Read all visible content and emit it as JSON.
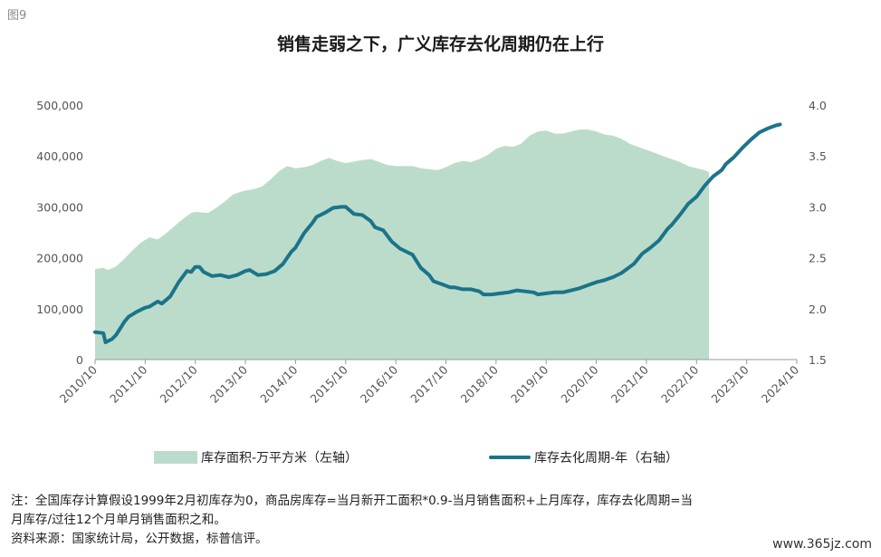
{
  "figure_label": "图9",
  "chart_data": {
    "type": "area+line",
    "title": "销售走弱之下，广义库存去化周期仍在上行",
    "categories": [
      "2010/10",
      "2011/10",
      "2012/10",
      "2013/10",
      "2014/10",
      "2015/10",
      "2016/10",
      "2017/10",
      "2018/10",
      "2019/10",
      "2020/10",
      "2021/10",
      "2022/10",
      "2023/10",
      "2024/10"
    ],
    "left_axis": {
      "ylim": [
        0,
        500000
      ],
      "ticks": [
        "0",
        "100,000",
        "200,000",
        "300,000",
        "400,000",
        "500,000"
      ]
    },
    "right_axis": {
      "ylim": [
        1.5,
        4.0
      ],
      "ticks": [
        "1.5",
        "2.0",
        "2.5",
        "3.0",
        "3.5",
        "4.0"
      ]
    },
    "grid": false,
    "legend_position": "bottom",
    "series": [
      {
        "name": "库存面积-万平方米（左轴）",
        "type": "area",
        "axis": "left",
        "color": "#bcdccb",
        "values": [
          [
            0,
            178000
          ],
          [
            2,
            180000
          ],
          [
            3,
            176000
          ],
          [
            5,
            183000
          ],
          [
            7,
            198000
          ],
          [
            9,
            215000
          ],
          [
            11,
            230000
          ],
          [
            13,
            240000
          ],
          [
            15,
            236000
          ],
          [
            17,
            248000
          ],
          [
            19,
            262000
          ],
          [
            21,
            276000
          ],
          [
            23,
            288000
          ],
          [
            24,
            290000
          ],
          [
            27,
            288000
          ],
          [
            29,
            298000
          ],
          [
            31,
            310000
          ],
          [
            33,
            324000
          ],
          [
            35,
            330000
          ],
          [
            36,
            332000
          ],
          [
            38,
            335000
          ],
          [
            40,
            340000
          ],
          [
            42,
            354000
          ],
          [
            44,
            370000
          ],
          [
            46,
            380000
          ],
          [
            48,
            376000
          ],
          [
            50,
            378000
          ],
          [
            52,
            382000
          ],
          [
            54,
            390000
          ],
          [
            56,
            396000
          ],
          [
            58,
            390000
          ],
          [
            60,
            386000
          ],
          [
            62,
            389000
          ],
          [
            64,
            392000
          ],
          [
            66,
            394000
          ],
          [
            68,
            388000
          ],
          [
            70,
            382000
          ],
          [
            72,
            380000
          ],
          [
            74,
            380000
          ],
          [
            76,
            380000
          ],
          [
            78,
            376000
          ],
          [
            80,
            374000
          ],
          [
            82,
            372000
          ],
          [
            84,
            378000
          ],
          [
            86,
            386000
          ],
          [
            88,
            390000
          ],
          [
            90,
            388000
          ],
          [
            92,
            394000
          ],
          [
            94,
            402000
          ],
          [
            96,
            414000
          ],
          [
            98,
            420000
          ],
          [
            100,
            418000
          ],
          [
            102,
            424000
          ],
          [
            104,
            440000
          ],
          [
            106,
            448000
          ],
          [
            108,
            450000
          ],
          [
            110,
            444000
          ],
          [
            112,
            444000
          ],
          [
            114,
            448000
          ],
          [
            116,
            452000
          ],
          [
            118,
            452000
          ],
          [
            120,
            448000
          ],
          [
            122,
            442000
          ],
          [
            124,
            440000
          ],
          [
            126,
            434000
          ],
          [
            128,
            424000
          ],
          [
            130,
            418000
          ],
          [
            132,
            412000
          ],
          [
            134,
            406000
          ],
          [
            136,
            400000
          ],
          [
            138,
            394000
          ],
          [
            140,
            388000
          ],
          [
            142,
            380000
          ],
          [
            144,
            376000
          ],
          [
            146,
            372000
          ],
          [
            147,
            368000
          ]
        ]
      },
      {
        "name": "库存去化周期-年（右轴）",
        "type": "line",
        "axis": "right",
        "color": "#1b7489",
        "values": [
          [
            0,
            1.77
          ],
          [
            2,
            1.76
          ],
          [
            2.5,
            1.67
          ],
          [
            4,
            1.7
          ],
          [
            5,
            1.74
          ],
          [
            7,
            1.87
          ],
          [
            8,
            1.92
          ],
          [
            10,
            1.97
          ],
          [
            12,
            2.01
          ],
          [
            13,
            2.02
          ],
          [
            15,
            2.07
          ],
          [
            16,
            2.05
          ],
          [
            18,
            2.12
          ],
          [
            20,
            2.26
          ],
          [
            22,
            2.37
          ],
          [
            23,
            2.36
          ],
          [
            24,
            2.41
          ],
          [
            25,
            2.41
          ],
          [
            26,
            2.36
          ],
          [
            28,
            2.32
          ],
          [
            30,
            2.33
          ],
          [
            32,
            2.31
          ],
          [
            34,
            2.33
          ],
          [
            36,
            2.37
          ],
          [
            37,
            2.38
          ],
          [
            39,
            2.33
          ],
          [
            41,
            2.34
          ],
          [
            43,
            2.37
          ],
          [
            45,
            2.44
          ],
          [
            47,
            2.56
          ],
          [
            48,
            2.6
          ],
          [
            50,
            2.74
          ],
          [
            52,
            2.84
          ],
          [
            53,
            2.9
          ],
          [
            55,
            2.94
          ],
          [
            57,
            2.99
          ],
          [
            59,
            3.0
          ],
          [
            60,
            3.0
          ],
          [
            62,
            2.93
          ],
          [
            64,
            2.92
          ],
          [
            66,
            2.86
          ],
          [
            67,
            2.8
          ],
          [
            69,
            2.77
          ],
          [
            71,
            2.66
          ],
          [
            73,
            2.59
          ],
          [
            75,
            2.55
          ],
          [
            76,
            2.53
          ],
          [
            78,
            2.4
          ],
          [
            80,
            2.33
          ],
          [
            81,
            2.27
          ],
          [
            83,
            2.24
          ],
          [
            85,
            2.21
          ],
          [
            86,
            2.21
          ],
          [
            88,
            2.19
          ],
          [
            90,
            2.19
          ],
          [
            92,
            2.17
          ],
          [
            93,
            2.14
          ],
          [
            95,
            2.14
          ],
          [
            97,
            2.15
          ],
          [
            99,
            2.16
          ],
          [
            101,
            2.18
          ],
          [
            103,
            2.17
          ],
          [
            105,
            2.16
          ],
          [
            106,
            2.14
          ],
          [
            108,
            2.15
          ],
          [
            110,
            2.16
          ],
          [
            112,
            2.16
          ],
          [
            114,
            2.18
          ],
          [
            116,
            2.2
          ],
          [
            118,
            2.23
          ],
          [
            120,
            2.26
          ],
          [
            122,
            2.28
          ],
          [
            124,
            2.31
          ],
          [
            126,
            2.35
          ],
          [
            127,
            2.38
          ],
          [
            129,
            2.44
          ],
          [
            131,
            2.54
          ],
          [
            133,
            2.6
          ],
          [
            135,
            2.67
          ],
          [
            137,
            2.78
          ],
          [
            138,
            2.82
          ],
          [
            140,
            2.92
          ],
          [
            142,
            3.03
          ],
          [
            144,
            3.1
          ],
          [
            146,
            3.21
          ],
          [
            148,
            3.3
          ],
          [
            150,
            3.36
          ],
          [
            151,
            3.42
          ],
          [
            153,
            3.49
          ],
          [
            155,
            3.58
          ],
          [
            157,
            3.66
          ],
          [
            159,
            3.73
          ],
          [
            161,
            3.77
          ],
          [
            163,
            3.8
          ],
          [
            164,
            3.81
          ]
        ]
      }
    ]
  },
  "legend": {
    "area_label": "库存面积-万平方米（左轴）",
    "line_label": "库存去化周期-年（右轴）"
  },
  "notes": {
    "line1": "注：全国库存计算假设1999年2月初库存为0，商品房库存=当月新开工面积*0.9-当月销售面积+上月库存，库存去化周期=当",
    "line2": "月库存/过往12个月单月销售面积之和。",
    "line3": "资料来源：国家统计局，公开数据，标普信评。"
  },
  "watermark": "www.365jz.com"
}
